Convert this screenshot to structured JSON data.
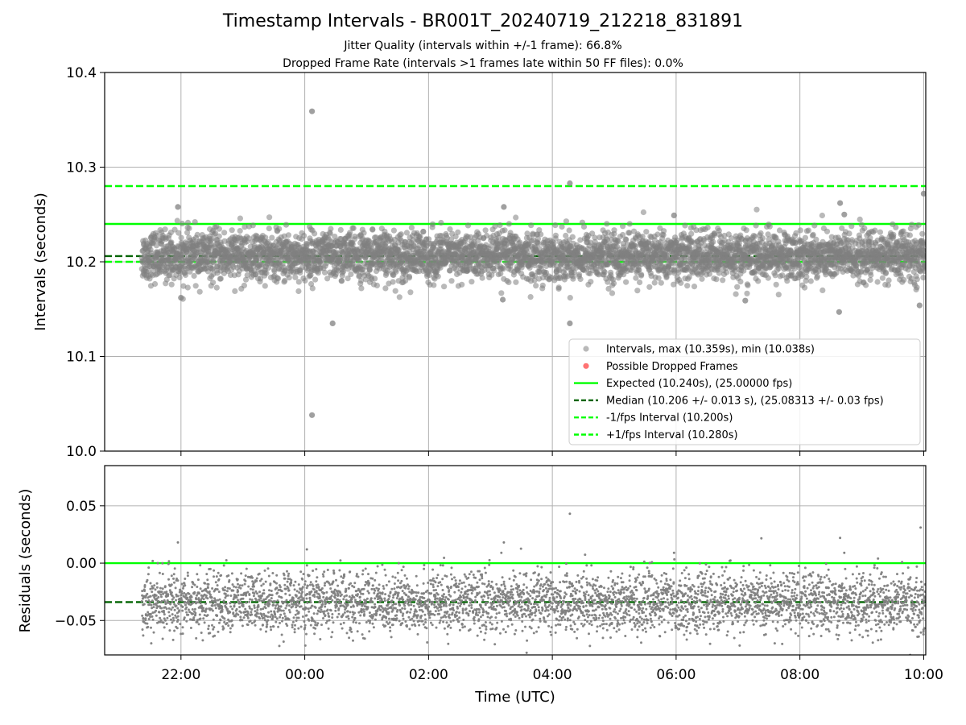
{
  "title": "Timestamp Intervals - BR001T_20240719_212218_831891",
  "subtitle_lines": [
    "Jitter Quality (intervals within +/-1 frame): 66.8%",
    "Dropped Frame Rate (intervals >1 frames late within 50 FF files): 0.0%"
  ],
  "colors": {
    "points": "#808080",
    "expected": "#00ff00",
    "median": "#006400",
    "interval_bounds": "#00ff00",
    "dropped": "#ff0000",
    "grid": "#b0b0b0"
  },
  "chart_data": [
    {
      "type": "scatter",
      "ylabel": "Intervals (seconds)",
      "ylim": [
        10.0,
        10.4
      ],
      "yticks": [
        "10.0",
        "10.1",
        "10.2",
        "10.3",
        "10.4"
      ],
      "xlim": [
        "2024-07-19 20:46",
        "2024-07-20 10:02"
      ],
      "grid": true,
      "legend_position": "lower-right",
      "legend": [
        "Intervals, max (10.359s), min (10.038s)",
        "Possible Dropped Frames",
        "Expected (10.240s), (25.00000 fps)",
        "Median (10.206 +/- 0.013 s), (25.08313 +/- 0.03 fps)",
        "-1/fps Interval (10.200s)",
        "+1/fps Interval (10.280s)"
      ],
      "reference_lines": {
        "expected": 10.24,
        "median": 10.206,
        "minus_1fps": 10.2,
        "plus_1fps": 10.28
      },
      "series": {
        "x_start": "2024-07-19 21:22",
        "x_end": "2024-07-20 10:02",
        "median": 10.206,
        "spread": 0.013,
        "count": 4400,
        "max": 10.359,
        "min": 10.038,
        "notable_points": [
          {
            "x": "2024-07-20 00:07",
            "y": 10.359
          },
          {
            "x": "2024-07-20 00:07",
            "y": 10.038
          },
          {
            "x": "2024-07-20 04:17",
            "y": 10.283
          },
          {
            "x": "2024-07-20 10:00",
            "y": 10.272
          },
          {
            "x": "2024-07-19 21:57",
            "y": 10.258
          },
          {
            "x": "2024-07-20 03:13",
            "y": 10.258
          },
          {
            "x": "2024-07-20 08:39",
            "y": 10.262
          },
          {
            "x": "2024-07-20 08:43",
            "y": 10.25
          },
          {
            "x": "2024-07-20 05:58",
            "y": 10.249
          },
          {
            "x": "2024-07-20 00:27",
            "y": 10.135
          },
          {
            "x": "2024-07-20 04:17",
            "y": 10.135
          },
          {
            "x": "2024-07-20 08:38",
            "y": 10.147
          },
          {
            "x": "2024-07-20 09:56",
            "y": 10.154
          },
          {
            "x": "2024-07-20 03:12",
            "y": 10.16
          },
          {
            "x": "2024-07-20 07:07",
            "y": 10.159
          },
          {
            "x": "2024-07-19 22:00",
            "y": 10.162
          }
        ]
      },
      "dropped_frames": []
    },
    {
      "type": "scatter",
      "xlabel": "Time (UTC)",
      "ylabel": "Residuals (seconds)",
      "ylim": [
        -0.08,
        0.085
      ],
      "yticks": [
        "−0.05",
        "0.00",
        "0.05"
      ],
      "xticks": [
        "22:00",
        "00:00",
        "02:00",
        "04:00",
        "06:00",
        "08:00",
        "10:00"
      ],
      "xlim": [
        "2024-07-19 20:46",
        "2024-07-20 10:02"
      ],
      "grid": true,
      "reference_lines": {
        "expected": 0.0,
        "median": -0.034
      },
      "series": {
        "x_start": "2024-07-19 21:22",
        "x_end": "2024-07-20 10:02",
        "median": -0.034,
        "spread": 0.013,
        "count": 4400,
        "max": 0.043,
        "min": -0.08,
        "notable_points": [
          {
            "x": "2024-07-20 04:17",
            "y": 0.043
          },
          {
            "x": "2024-07-20 09:57",
            "y": 0.031
          },
          {
            "x": "2024-07-20 08:39",
            "y": 0.022
          },
          {
            "x": "2024-07-19 21:57",
            "y": 0.018
          },
          {
            "x": "2024-07-20 03:13",
            "y": 0.018
          },
          {
            "x": "2024-07-20 00:02",
            "y": 0.012
          },
          {
            "x": "2024-07-20 05:58",
            "y": 0.009
          },
          {
            "x": "2024-07-20 08:43",
            "y": 0.009
          }
        ]
      }
    }
  ]
}
